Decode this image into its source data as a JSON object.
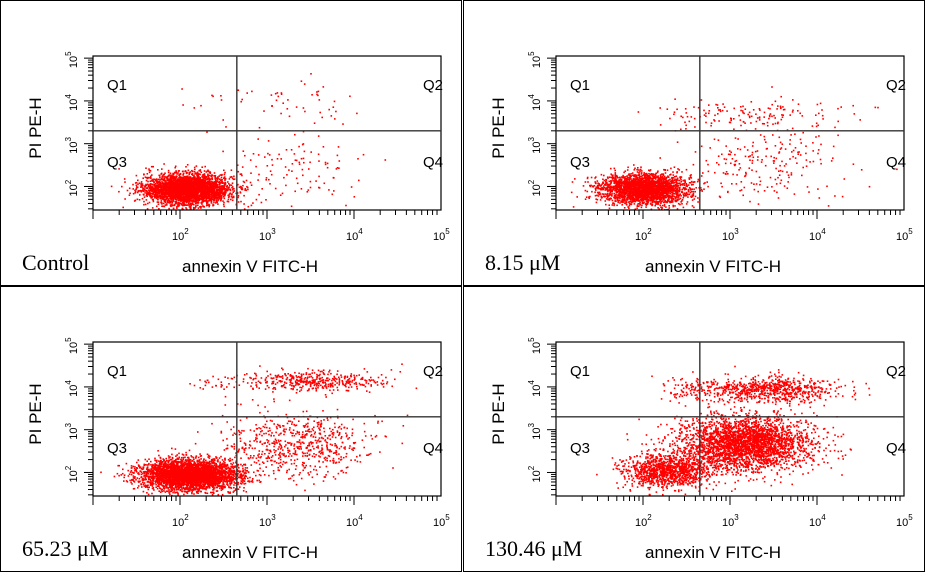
{
  "chart_data": [
    {
      "type": "scatter",
      "condition_label": "Control",
      "xlabel": "annexin V FITC-H",
      "ylabel": "PI PE-H",
      "x_scale": "log",
      "y_scale": "log",
      "xlim": [
        10,
        100000
      ],
      "ylim": [
        10,
        100000
      ],
      "gate": {
        "x": 450,
        "y": 2000
      },
      "quadrant_labels": [
        "Q1",
        "Q2",
        "Q3",
        "Q4"
      ],
      "x_ticks": [
        "10^2",
        "10^3",
        "10^4",
        "10^5"
      ],
      "y_ticks": [
        "10^2",
        "10^3",
        "10^4",
        "10^5"
      ],
      "color": "#ff0000",
      "clusters": [
        {
          "region": "Q3",
          "x_center": 120,
          "y_center": 90,
          "spread_x": 0.25,
          "spread_y": 0.18,
          "count": 3200
        },
        {
          "region": "Q4",
          "x_center": 2000,
          "y_center": 300,
          "spread_x": 0.45,
          "spread_y": 0.45,
          "count": 110
        },
        {
          "region": "Q2",
          "x_center": 2000,
          "y_center": 10000,
          "spread_x": 0.4,
          "spread_y": 0.25,
          "count": 45
        },
        {
          "region": "Q1",
          "x_center": 200,
          "y_center": 10000,
          "spread_x": 0.2,
          "spread_y": 0.25,
          "count": 8
        }
      ]
    },
    {
      "type": "scatter",
      "condition_label": "8.15 μM",
      "xlabel": "annexin V FITC-H",
      "ylabel": "PI PE-H",
      "x_scale": "log",
      "y_scale": "log",
      "xlim": [
        10,
        100000
      ],
      "ylim": [
        10,
        100000
      ],
      "gate": {
        "x": 450,
        "y": 2000
      },
      "quadrant_labels": [
        "Q1",
        "Q2",
        "Q3",
        "Q4"
      ],
      "x_ticks": [
        "10^2",
        "10^3",
        "10^4",
        "10^5"
      ],
      "y_ticks": [
        "10^2",
        "10^3",
        "10^4",
        "10^5"
      ],
      "color": "#ff0000",
      "clusters": [
        {
          "region": "Q3",
          "x_center": 100,
          "y_center": 90,
          "spread_x": 0.25,
          "spread_y": 0.18,
          "count": 2600
        },
        {
          "region": "Q4",
          "x_center": 2500,
          "y_center": 350,
          "spread_x": 0.45,
          "spread_y": 0.45,
          "count": 220
        },
        {
          "region": "Q2",
          "x_center": 2500,
          "y_center": 5000,
          "spread_x": 0.45,
          "spread_y": 0.18,
          "count": 130
        },
        {
          "region": "Q1",
          "x_center": 250,
          "y_center": 5000,
          "spread_x": 0.15,
          "spread_y": 0.2,
          "count": 15
        }
      ]
    },
    {
      "type": "scatter",
      "condition_label": "65.23 μM",
      "xlabel": "annexin V FITC-H",
      "ylabel": "PI PE-H",
      "x_scale": "log",
      "y_scale": "log",
      "xlim": [
        10,
        100000
      ],
      "ylim": [
        10,
        100000
      ],
      "gate": {
        "x": 450,
        "y": 2000
      },
      "quadrant_labels": [
        "Q1",
        "Q2",
        "Q3",
        "Q4"
      ],
      "x_ticks": [
        "10^2",
        "10^3",
        "10^4",
        "10^5"
      ],
      "y_ticks": [
        "10^2",
        "10^3",
        "10^4",
        "10^5"
      ],
      "color": "#ff0000",
      "clusters": [
        {
          "region": "Q3",
          "x_center": 130,
          "y_center": 90,
          "spread_x": 0.28,
          "spread_y": 0.18,
          "count": 3600
        },
        {
          "region": "Q4",
          "x_center": 2200,
          "y_center": 450,
          "spread_x": 0.45,
          "spread_y": 0.4,
          "count": 650
        },
        {
          "region": "Q2",
          "x_center": 3500,
          "y_center": 14000,
          "spread_x": 0.42,
          "spread_y": 0.12,
          "count": 420
        },
        {
          "region": "Q1",
          "x_center": 250,
          "y_center": 14000,
          "spread_x": 0.15,
          "spread_y": 0.12,
          "count": 25
        }
      ]
    },
    {
      "type": "scatter",
      "condition_label": "130.46 μM",
      "xlabel": "annexin V FITC-H",
      "ylabel": "PI PE-H",
      "x_scale": "log",
      "y_scale": "log",
      "xlim": [
        10,
        100000
      ],
      "ylim": [
        10,
        100000
      ],
      "gate": {
        "x": 450,
        "y": 2000
      },
      "quadrant_labels": [
        "Q1",
        "Q2",
        "Q3",
        "Q4"
      ],
      "x_ticks": [
        "10^2",
        "10^3",
        "10^4",
        "10^5"
      ],
      "y_ticks": [
        "10^2",
        "10^3",
        "10^4",
        "10^5"
      ],
      "color": "#ff0000",
      "clusters": [
        {
          "region": "Q3",
          "x_center": 180,
          "y_center": 110,
          "spread_x": 0.25,
          "spread_y": 0.2,
          "count": 1100
        },
        {
          "region": "Q4",
          "x_center": 1500,
          "y_center": 500,
          "spread_x": 0.38,
          "spread_y": 0.32,
          "count": 2900
        },
        {
          "region": "Q2",
          "x_center": 2500,
          "y_center": 9000,
          "spread_x": 0.4,
          "spread_y": 0.14,
          "count": 750
        },
        {
          "region": "Q1",
          "x_center": 300,
          "y_center": 9000,
          "spread_x": 0.12,
          "spread_y": 0.15,
          "count": 60
        }
      ]
    }
  ]
}
